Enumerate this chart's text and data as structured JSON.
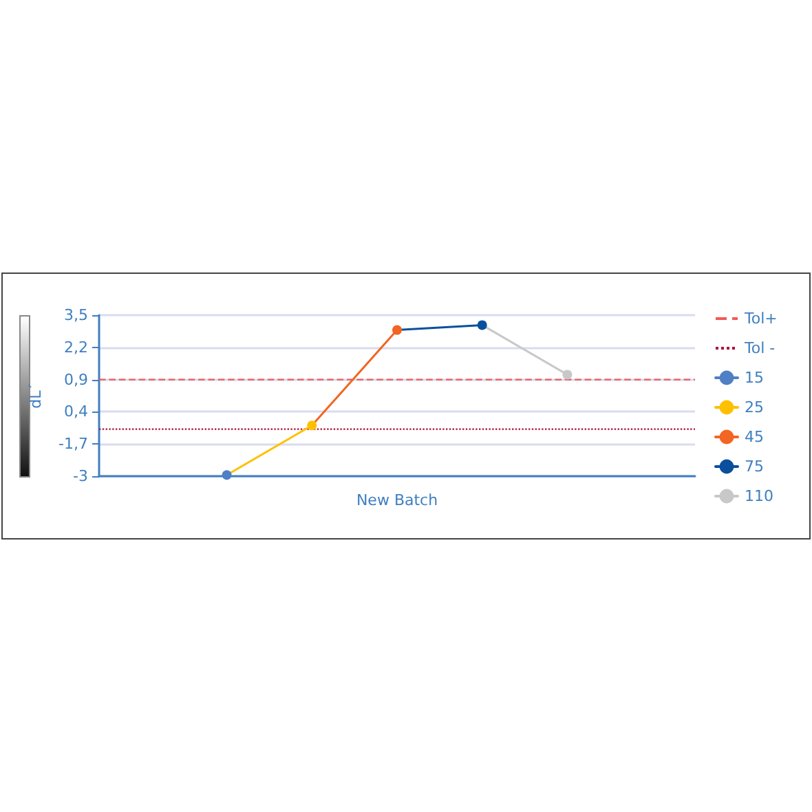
{
  "chart_data": {
    "type": "line",
    "xlabel": "New Batch",
    "ylabel": "dL´",
    "categories": [
      null,
      null,
      null,
      null,
      null,
      null,
      null
    ],
    "series": [
      {
        "name": "15",
        "color": "#4f7fc4",
        "values": [
          null,
          -2.95,
          null,
          null,
          null,
          null,
          null
        ]
      },
      {
        "name": "25",
        "color": "#ffc000",
        "values": [
          null,
          -2.95,
          -0.95,
          null,
          null,
          null,
          null
        ]
      },
      {
        "name": "45",
        "color": "#f26522",
        "values": [
          null,
          null,
          -0.95,
          2.9,
          null,
          null,
          null
        ]
      },
      {
        "name": "75",
        "color": "#0a4f9e",
        "values": [
          null,
          null,
          null,
          2.9,
          3.1,
          null,
          null
        ]
      },
      {
        "name": "110",
        "color": "#c8c8c8",
        "values": [
          null,
          null,
          null,
          null,
          3.1,
          1.1,
          null
        ]
      }
    ],
    "ylim": [
      -3,
      3.5
    ],
    "yticks": [
      {
        "value": 3.5,
        "label": "3,5"
      },
      {
        "value": 2.2,
        "label": "2,2"
      },
      {
        "value": 0.9,
        "label": "0,9"
      },
      {
        "value": -0.4,
        "label": "0,4"
      },
      {
        "value": -1.7,
        "label": "-1,7"
      },
      {
        "value": -3,
        "label": "-3"
      }
    ],
    "ref_lines": [
      {
        "axis": "y",
        "value": 0.9,
        "label": "Tol+",
        "color": "#f05a5a",
        "line_style": "dashed"
      },
      {
        "axis": "y",
        "value": -1.1,
        "label": "Tol -",
        "color": "#b0103a",
        "line_style": "dotted"
      }
    ],
    "grid": "y",
    "legend": "right",
    "marker": "circle",
    "line_style": "solid"
  }
}
